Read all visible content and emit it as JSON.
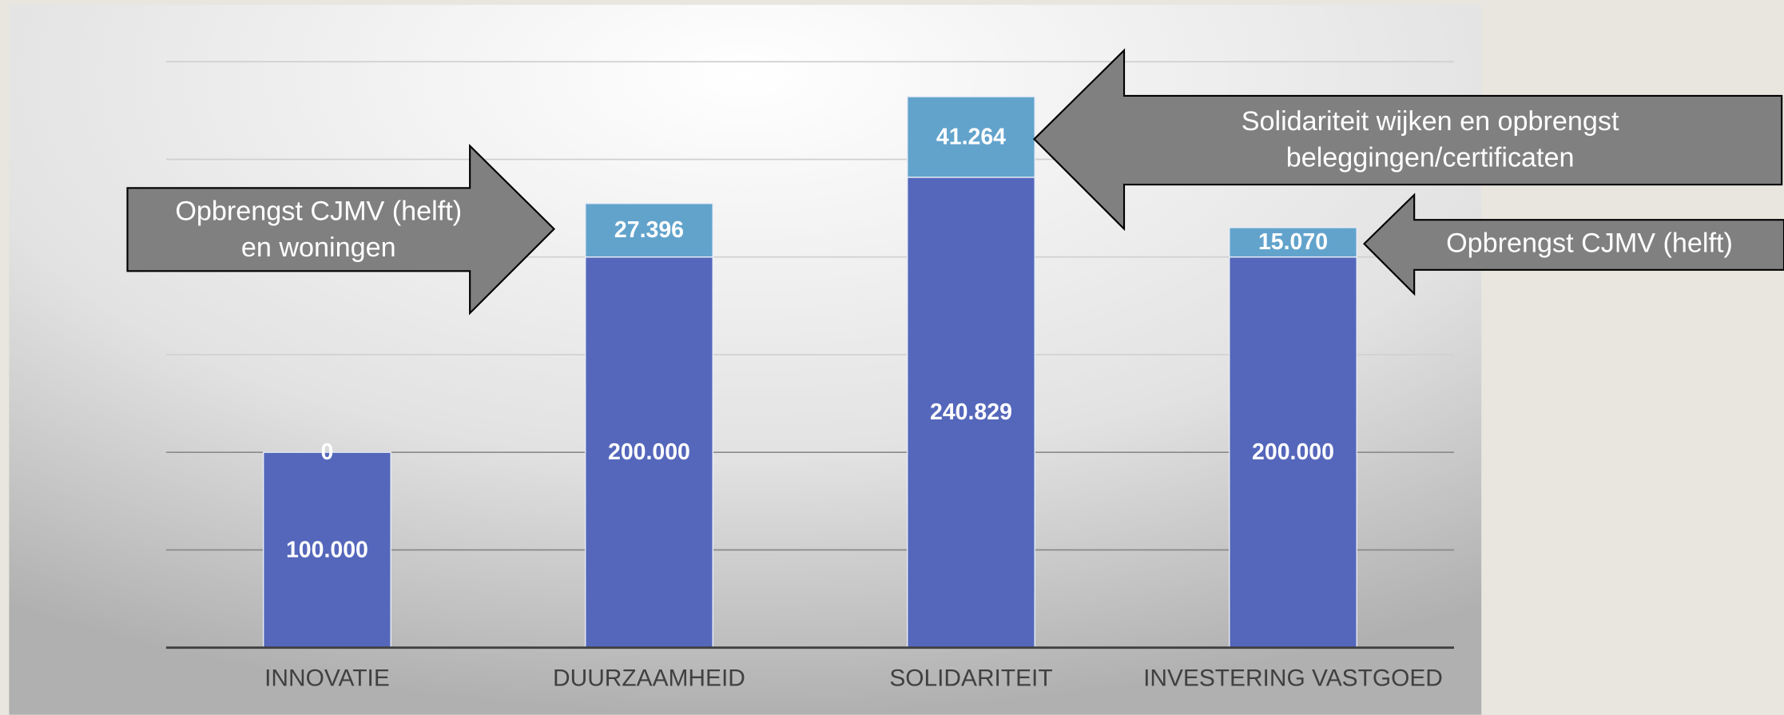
{
  "chart_data": {
    "type": "stacked_bar",
    "categories": [
      "INNOVATIE",
      "DUURZAAMHEID",
      "SOLIDARITEIT",
      "INVESTERING VASTGOED"
    ],
    "series": [
      {
        "name": null,
        "color": "#5567bb",
        "values": [
          100000,
          200000,
          240829,
          200000
        ],
        "value_labels": [
          "100.000",
          "200.000",
          "240.829",
          "200.000"
        ]
      },
      {
        "name": null,
        "color": "#62a3cc",
        "values": [
          0,
          27396,
          41264,
          15070
        ],
        "value_labels": [
          "0",
          "27.396",
          "41.264",
          "15.070"
        ]
      }
    ],
    "ylim": [
      0,
      300000
    ],
    "yticks": [
      0,
      50000,
      100000,
      150000,
      200000,
      250000,
      300000
    ],
    "grid": true,
    "annotations": [
      {
        "lines": [
          "Opbrengst CJMV (helft)",
          "en woningen"
        ]
      },
      {
        "lines": [
          "Solidariteit wijken en opbrengst",
          "beleggingen/certificaten"
        ]
      },
      {
        "lines": [
          "Opbrengst CJMV (helft)"
        ]
      }
    ]
  }
}
